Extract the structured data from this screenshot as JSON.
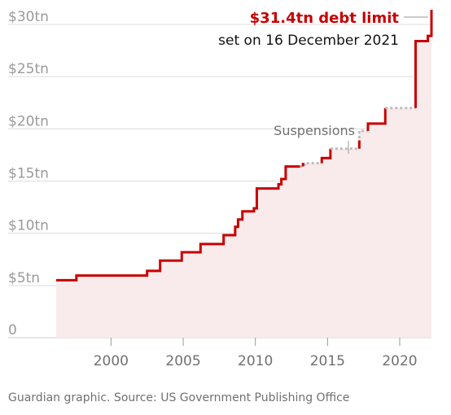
{
  "chart_data": {
    "type": "area",
    "x_ticks": [
      2000,
      2005,
      2010,
      2015,
      2020
    ],
    "y_ticks": [
      {
        "value": 0,
        "label": "0"
      },
      {
        "value": 5,
        "label": "$5tn"
      },
      {
        "value": 10,
        "label": "$10tn"
      },
      {
        "value": 15,
        "label": "$15tn"
      },
      {
        "value": 20,
        "label": "$20tn"
      },
      {
        "value": 25,
        "label": "$25tn"
      },
      {
        "value": 30,
        "label": "$30tn"
      }
    ],
    "xlim": [
      1996.2,
      2022.2
    ],
    "ylim": [
      0,
      30
    ],
    "grid": true,
    "segments": [
      {
        "style": "limit",
        "points": [
          [
            1996.2,
            5.5
          ],
          [
            1997.6,
            5.5
          ],
          [
            1997.6,
            5.95
          ],
          [
            2002.5,
            5.95
          ],
          [
            2002.5,
            6.4
          ],
          [
            2003.4,
            6.4
          ],
          [
            2003.4,
            7.38
          ],
          [
            2004.9,
            7.38
          ],
          [
            2004.9,
            8.18
          ],
          [
            2006.2,
            8.18
          ],
          [
            2006.2,
            8.97
          ],
          [
            2007.8,
            8.97
          ],
          [
            2007.8,
            9.82
          ],
          [
            2008.6,
            9.82
          ],
          [
            2008.6,
            10.62
          ],
          [
            2008.8,
            10.62
          ],
          [
            2008.8,
            11.32
          ],
          [
            2009.1,
            11.32
          ],
          [
            2009.1,
            12.1
          ],
          [
            2009.9,
            12.1
          ],
          [
            2009.9,
            12.39
          ],
          [
            2010.1,
            12.39
          ],
          [
            2010.1,
            14.29
          ],
          [
            2011.6,
            14.29
          ],
          [
            2011.6,
            14.69
          ],
          [
            2011.8,
            14.69
          ],
          [
            2011.8,
            15.19
          ],
          [
            2012.1,
            15.19
          ],
          [
            2012.1,
            16.39
          ],
          [
            2013.1,
            16.39
          ]
        ]
      },
      {
        "style": "suspension",
        "points": [
          [
            2013.1,
            16.39
          ],
          [
            2013.4,
            16.39
          ],
          [
            2013.4,
            16.7
          ],
          [
            2014.6,
            16.7
          ]
        ]
      },
      {
        "style": "limit",
        "points": [
          [
            2013.3,
            16.4
          ],
          [
            2013.3,
            16.75
          ]
        ]
      },
      {
        "style": "limit",
        "points": [
          [
            2014.6,
            16.7
          ],
          [
            2014.6,
            17.2
          ],
          [
            2015.2,
            17.2
          ],
          [
            2015.2,
            18.1
          ]
        ]
      },
      {
        "style": "suspension",
        "points": [
          [
            2015.2,
            18.1
          ],
          [
            2017.2,
            18.1
          ],
          [
            2017.2,
            19.8
          ],
          [
            2017.8,
            19.8
          ]
        ]
      },
      {
        "style": "limit",
        "points": [
          [
            2017.2,
            18.1
          ],
          [
            2017.2,
            18.9
          ]
        ]
      },
      {
        "style": "limit",
        "points": [
          [
            2017.8,
            19.8
          ],
          [
            2017.8,
            20.5
          ],
          [
            2019.0,
            20.5
          ],
          [
            2019.0,
            21.99
          ]
        ]
      },
      {
        "style": "suspension",
        "points": [
          [
            2019.0,
            21.99
          ],
          [
            2021.1,
            21.99
          ]
        ]
      },
      {
        "style": "limit",
        "points": [
          [
            2021.1,
            21.99
          ],
          [
            2021.1,
            28.4
          ],
          [
            2021.95,
            28.4
          ],
          [
            2021.95,
            28.9
          ],
          [
            2022.2,
            28.9
          ],
          [
            2022.2,
            31.4
          ]
        ]
      }
    ],
    "fill_color": "#f9ebeb",
    "line_color": "#c70000",
    "suspension_color": "#bdbdbd",
    "annotations": {
      "limit_title": "$31.4tn debt limit",
      "limit_subtitle": "set on 16 December 2021",
      "suspensions_label": "Suspensions"
    }
  },
  "footer": {
    "source": "Guardian graphic. Source: US Government Publishing Office"
  }
}
